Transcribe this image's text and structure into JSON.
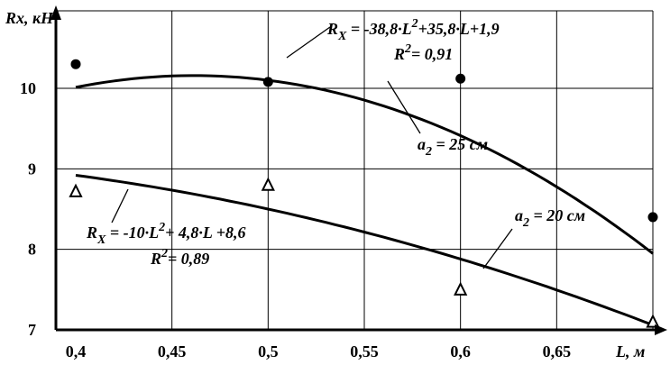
{
  "chart_data": {
    "type": "scatter",
    "title": "",
    "xlabel": "L, м",
    "ylabel": "Rx, кН",
    "xlim": [
      0.4,
      0.7
    ],
    "ylim": [
      7,
      11
    ],
    "x_ticks": [
      "0,4",
      "0,45",
      "0,5",
      "0,55",
      "0,6",
      "0,65"
    ],
    "y_ticks": [
      "7",
      "8",
      "9",
      "10"
    ],
    "grid": true,
    "series": [
      {
        "name": "a2 = 25 см",
        "marker": "circle",
        "x": [
          0.4,
          0.5,
          0.6,
          0.7
        ],
        "y": [
          10.3,
          10.08,
          10.12,
          8.4
        ],
        "trend": {
          "a": -38.8,
          "b": 35.8,
          "c": 1.9
        }
      },
      {
        "name": "a2 = 20 см",
        "marker": "triangle",
        "x": [
          0.4,
          0.5,
          0.6,
          0.7
        ],
        "y": [
          8.72,
          8.8,
          7.5,
          7.1
        ],
        "trend": {
          "a": -10,
          "b": 4.8,
          "c": 8.6
        }
      }
    ],
    "annotations": [
      {
        "eq_prefix": "R",
        "eq_sub": "X",
        "eq_main": " = -38,8·L",
        "eq_sup": "2",
        "eq_tail": "+35,8·L+1,9",
        "r2_prefix": "R",
        "r2_sup": "2",
        "r2_tail": "= 0,91",
        "label_prefix": "a",
        "label_sub": "2",
        "label_tail": " = 25 см"
      },
      {
        "eq_prefix": "R",
        "eq_sub": "X",
        "eq_main": " = -10·L",
        "eq_sup": "2",
        "eq_tail": "+ 4,8·L +8,6",
        "r2_prefix": "R",
        "r2_sup": "2",
        "r2_tail": "= 0,89",
        "label_prefix": "a",
        "label_sub": "2",
        "label_tail": " = 20 см"
      }
    ]
  }
}
